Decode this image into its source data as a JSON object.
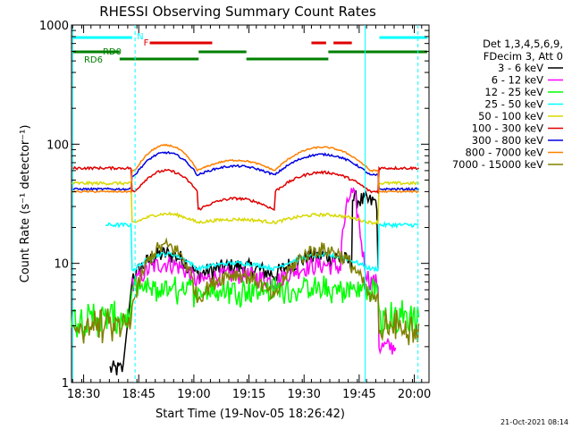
{
  "chart_data": {
    "type": "line",
    "title": "RHESSI Observing Summary Count Rates",
    "xlabel": "Start Time (19-Nov-05 18:26:42)",
    "ylabel": "Count Rate (s⁻¹ detector⁻¹)",
    "y_scale": "log",
    "ylim": [
      1,
      1000
    ],
    "xlim_minutes": [
      18.26,
      20.06
    ],
    "x_ticks": [
      "18:30",
      "18:45",
      "19:00",
      "19:15",
      "19:30",
      "19:45",
      "20:00"
    ],
    "y_ticks": [
      "1",
      "10",
      "100",
      "1000"
    ],
    "grid": false,
    "legend_position": "right",
    "legend_header": [
      "Det 1,3,4,5,6,9,",
      "FDecim 3, Att 0"
    ],
    "footer_timestamp": "21-Oct-2021 08:14",
    "state_flags": [
      {
        "label": "N",
        "color": "#00ffff"
      },
      {
        "label": "F",
        "color": "#e00000"
      },
      {
        "label": "RD0",
        "color": "#008000"
      },
      {
        "label": "RD6",
        "color": "#008000"
      }
    ],
    "series": [
      {
        "name": "3 - 6 keV",
        "color": "#000000"
      },
      {
        "name": "6 - 12 keV",
        "color": "#ff00ff"
      },
      {
        "name": "12 - 25 keV",
        "color": "#00ff00"
      },
      {
        "name": "25 - 50 keV",
        "color": "#00ffff"
      },
      {
        "name": "50 - 100 keV",
        "color": "#d8d800"
      },
      {
        "name": "100 - 300 keV",
        "color": "#e00000"
      },
      {
        "name": "300 - 800 keV",
        "color": "#0000e0"
      },
      {
        "name": "800 - 7000 keV",
        "color": "#ff8000"
      },
      {
        "name": "7000 - 15000 keV",
        "color": "#808000"
      }
    ]
  }
}
